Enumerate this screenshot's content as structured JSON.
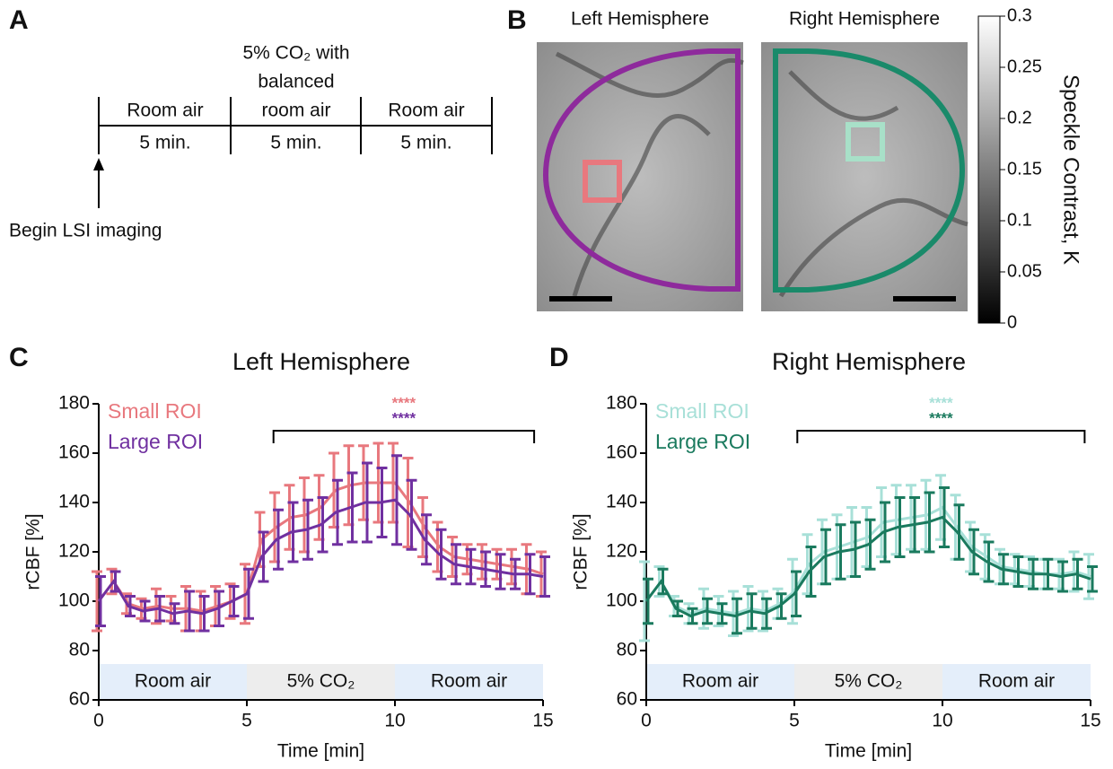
{
  "panels": [
    "A",
    "B",
    "C",
    "D"
  ],
  "timeline": {
    "segments": [
      {
        "label": [
          "Room air"
        ],
        "duration": "5 min."
      },
      {
        "label": [
          "5% CO₂ with",
          "balanced",
          "room air"
        ],
        "duration": "5 min."
      },
      {
        "label": [
          "Room air"
        ],
        "duration": "5 min."
      }
    ],
    "start_label": "Begin LSI imaging"
  },
  "images": {
    "titles": [
      "Left Hemisphere",
      "Right Hemisphere"
    ],
    "colorbar": {
      "label": "Speckle Contrast, K",
      "ylim": [
        0,
        0.3
      ],
      "yticks": [
        0,
        0.05,
        0.1,
        0.15,
        0.2,
        0.25,
        0.3
      ]
    }
  },
  "chart_data": [
    {
      "type": "line",
      "title": "Left Hemisphere",
      "xlabel": "Time [min]",
      "ylabel": "rCBF [%]",
      "xlim": [
        0,
        15
      ],
      "xticks": [
        0,
        5,
        10,
        15
      ],
      "ylim": [
        60,
        180
      ],
      "yticks": [
        60,
        80,
        100,
        120,
        140,
        160,
        180
      ],
      "bracket": [
        5.9,
        14.7
      ],
      "phases": [
        {
          "label": "Room air",
          "start": 0,
          "end": 5
        },
        {
          "label": "5% CO₂",
          "start": 5,
          "end": 10
        },
        {
          "label": "Room air",
          "start": 10,
          "end": 15
        }
      ],
      "x": [
        0,
        0.5,
        1,
        1.5,
        2,
        2.5,
        3,
        3.5,
        4,
        4.5,
        5,
        5.5,
        6,
        6.5,
        7,
        7.5,
        8,
        8.5,
        9,
        9.5,
        10,
        10.5,
        11,
        11.5,
        12,
        12.5,
        13,
        13.5,
        14,
        14.5,
        15
      ],
      "series": [
        {
          "name": "Small ROI",
          "color": "#e8787e",
          "significance": "****",
          "values": [
            100,
            108,
            99,
            97,
            98,
            97,
            97,
            96,
            98,
            100,
            103,
            125,
            130,
            134,
            135,
            138,
            145,
            147,
            148,
            148,
            148,
            140,
            130,
            122,
            118,
            117,
            116,
            115,
            114,
            113,
            111
          ],
          "errors": [
            12,
            5,
            4,
            4,
            7,
            5,
            9,
            8,
            8,
            7,
            12,
            11,
            14,
            13,
            15,
            13,
            15,
            16,
            15,
            16,
            16,
            18,
            12,
            10,
            8,
            6,
            7,
            6,
            7,
            10,
            9
          ]
        },
        {
          "name": "Large ROI",
          "color": "#7030a0",
          "significance": "****",
          "values": [
            100,
            108,
            98,
            96,
            97,
            95,
            96,
            95,
            97,
            100,
            103,
            118,
            125,
            128,
            129,
            131,
            136,
            138,
            140,
            140,
            141,
            135,
            125,
            119,
            115,
            114,
            113,
            112,
            111,
            111,
            110
          ],
          "errors": [
            10,
            4,
            4,
            4,
            5,
            4,
            8,
            7,
            7,
            6,
            10,
            10,
            12,
            12,
            12,
            11,
            13,
            14,
            16,
            14,
            18,
            14,
            10,
            10,
            8,
            7,
            7,
            7,
            6,
            8,
            8
          ]
        }
      ]
    },
    {
      "type": "line",
      "title": "Right Hemisphere",
      "xlabel": "Time [min]",
      "ylabel": "rCBF [%]",
      "xlim": [
        0,
        15
      ],
      "xticks": [
        0,
        5,
        10,
        15
      ],
      "ylim": [
        60,
        180
      ],
      "yticks": [
        60,
        80,
        100,
        120,
        140,
        160,
        180
      ],
      "bracket": [
        5.1,
        14.8
      ],
      "phases": [
        {
          "label": "Room air",
          "start": 0,
          "end": 5
        },
        {
          "label": "5% CO₂",
          "start": 5,
          "end": 10
        },
        {
          "label": "Room air",
          "start": 10,
          "end": 15
        }
      ],
      "x": [
        0,
        0.5,
        1,
        1.5,
        2,
        2.5,
        3,
        3.5,
        4,
        4.5,
        5,
        5.5,
        6,
        6.5,
        7,
        7.5,
        8,
        8.5,
        9,
        9.5,
        10,
        10.5,
        11,
        11.5,
        12,
        12.5,
        13,
        13.5,
        14,
        14.5,
        15
      ],
      "series": [
        {
          "name": "Small ROI",
          "color": "#a8e0d8",
          "significance": "****",
          "values": [
            100,
            108,
            98,
            95,
            97,
            96,
            95,
            97,
            96,
            99,
            104,
            115,
            120,
            122,
            124,
            126,
            132,
            133,
            134,
            135,
            138,
            130,
            122,
            118,
            114,
            113,
            112,
            111,
            111,
            112,
            110
          ],
          "errors": [
            16,
            6,
            4,
            4,
            8,
            6,
            9,
            9,
            8,
            6,
            13,
            12,
            13,
            13,
            14,
            12,
            14,
            14,
            13,
            14,
            13,
            13,
            10,
            9,
            7,
            6,
            6,
            6,
            6,
            8,
            9
          ]
        },
        {
          "name": "Large ROI",
          "color": "#1a7a5e",
          "significance": "****",
          "values": [
            100,
            108,
            97,
            94,
            96,
            95,
            94,
            96,
            95,
            98,
            103,
            112,
            118,
            120,
            121,
            123,
            128,
            130,
            131,
            132,
            134,
            128,
            120,
            116,
            113,
            112,
            111,
            111,
            110,
            111,
            109
          ],
          "errors": [
            9,
            5,
            3,
            3,
            5,
            4,
            7,
            7,
            6,
            5,
            9,
            10,
            11,
            11,
            11,
            10,
            12,
            12,
            11,
            12,
            12,
            11,
            9,
            8,
            6,
            6,
            6,
            6,
            6,
            6,
            5
          ]
        }
      ]
    }
  ]
}
